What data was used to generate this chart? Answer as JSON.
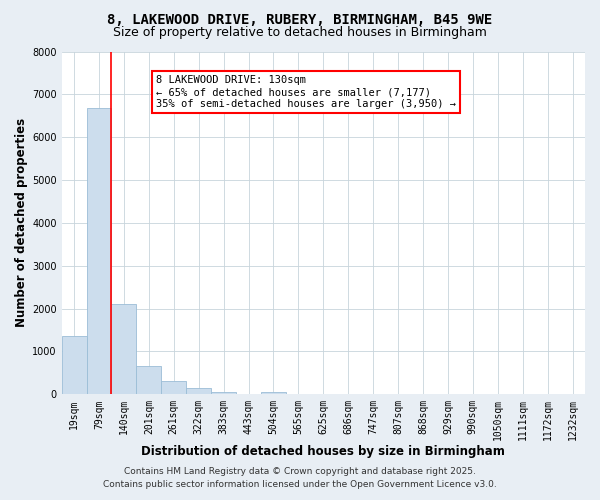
{
  "title": "8, LAKEWOOD DRIVE, RUBERY, BIRMINGHAM, B45 9WE",
  "subtitle": "Size of property relative to detached houses in Birmingham",
  "bar_labels": [
    "19sqm",
    "79sqm",
    "140sqm",
    "201sqm",
    "261sqm",
    "322sqm",
    "383sqm",
    "443sqm",
    "504sqm",
    "565sqm",
    "625sqm",
    "686sqm",
    "747sqm",
    "807sqm",
    "868sqm",
    "929sqm",
    "990sqm",
    "1050sqm",
    "1111sqm",
    "1172sqm",
    "1232sqm"
  ],
  "bar_values": [
    1350,
    6680,
    2100,
    650,
    310,
    155,
    65,
    0,
    65,
    0,
    0,
    0,
    0,
    0,
    0,
    0,
    0,
    0,
    0,
    0,
    0
  ],
  "bar_color": "#ccdded",
  "bar_edgecolor": "#9bbdd6",
  "property_line_color": "red",
  "ylim": [
    0,
    8000
  ],
  "yticks": [
    0,
    1000,
    2000,
    3000,
    4000,
    5000,
    6000,
    7000,
    8000
  ],
  "xlabel": "Distribution of detached houses by size in Birmingham",
  "ylabel": "Number of detached properties",
  "annotation_title": "8 LAKEWOOD DRIVE: 130sqm",
  "annotation_line1": "← 65% of detached houses are smaller (7,177)",
  "annotation_line2": "35% of semi-detached houses are larger (3,950) →",
  "annotation_box_edgecolor": "red",
  "annotation_box_facecolor": "white",
  "footer_line1": "Contains HM Land Registry data © Crown copyright and database right 2025.",
  "footer_line2": "Contains public sector information licensed under the Open Government Licence v3.0.",
  "bg_color": "#e8eef4",
  "plot_bg_color": "#ffffff",
  "grid_color": "#c8d4dc",
  "title_fontsize": 10,
  "subtitle_fontsize": 9,
  "axis_label_fontsize": 8.5,
  "tick_fontsize": 7,
  "annotation_fontsize": 7.5,
  "footer_fontsize": 6.5
}
